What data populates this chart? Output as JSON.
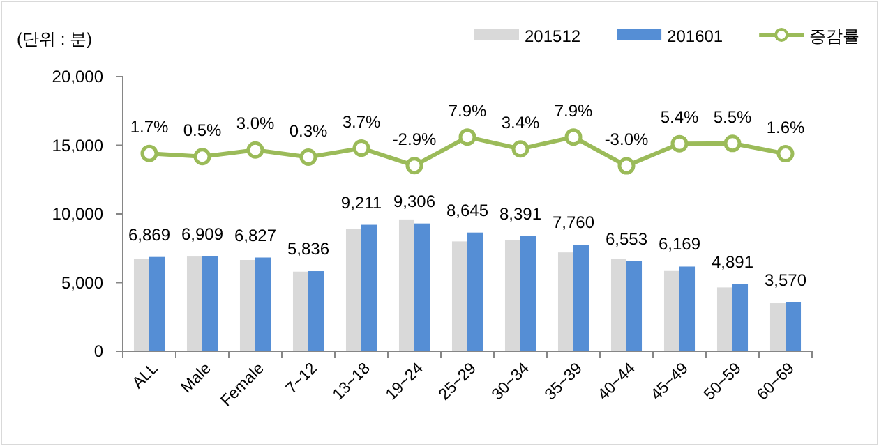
{
  "chart_data": {
    "type": "bar",
    "title": "(단위 : 분)",
    "categories": [
      "ALL",
      "Male",
      "Female",
      "7~12",
      "13~18",
      "19~24",
      "25~29",
      "30~34",
      "35~39",
      "40~44",
      "45~49",
      "50~59",
      "60~69"
    ],
    "series": [
      {
        "name": "201512",
        "color": "#d9d9d9",
        "values": [
          6750,
          6900,
          6650,
          5800,
          8900,
          9600,
          8000,
          8100,
          7200,
          6750,
          5850,
          4650,
          3500
        ]
      },
      {
        "name": "201601",
        "color": "#558ed5",
        "values": [
          6869,
          6909,
          6827,
          5836,
          9211,
          9306,
          8645,
          8391,
          7760,
          6553,
          6169,
          4891,
          3570
        ],
        "value_labels": [
          "6,869",
          "6,909",
          "6,827",
          "5,836",
          "9,211",
          "9,306",
          "8,645",
          "8,391",
          "7,760",
          "6,553",
          "6,169",
          "4,891",
          "3,570"
        ]
      },
      {
        "name": "증감률",
        "type": "line",
        "axis": "y2",
        "color": "#9bbb59",
        "marker": "circle",
        "values": [
          1.7,
          0.5,
          3.0,
          0.3,
          3.7,
          -2.9,
          7.9,
          3.4,
          7.9,
          -3.0,
          5.4,
          5.5,
          1.6
        ],
        "value_labels": [
          "1.7%",
          "0.5%",
          "3.0%",
          "0.3%",
          "3.7%",
          "-2.9%",
          "7.9%",
          "3.4%",
          "7.9%",
          "-3.0%",
          "5.4%",
          "5.5%",
          "1.6%"
        ]
      }
    ],
    "ylim": [
      0,
      20000
    ],
    "yticks": [
      {
        "value": 0,
        "label": "0"
      },
      {
        "value": 5000,
        "label": "5,000"
      },
      {
        "value": 10000,
        "label": "10,000"
      },
      {
        "value": 15000,
        "label": "15,000"
      },
      {
        "value": 20000,
        "label": "20,000"
      }
    ],
    "grid": false,
    "legend": "top right"
  }
}
